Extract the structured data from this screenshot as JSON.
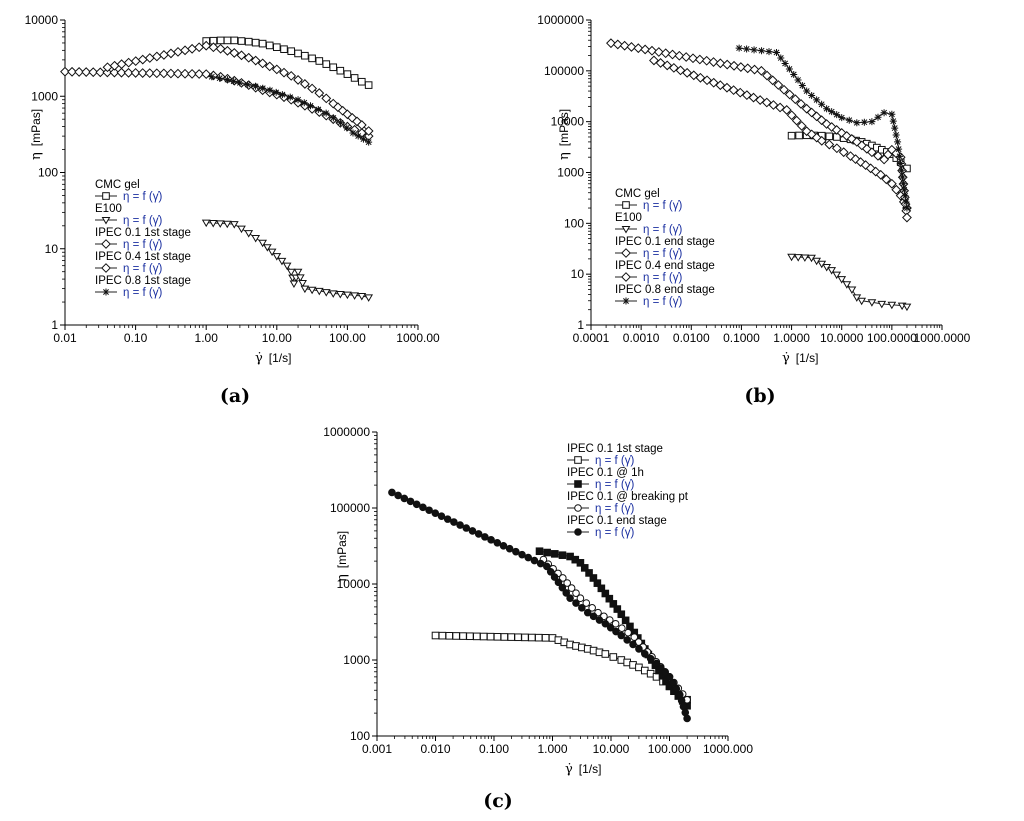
{
  "chart_data": [
    {
      "id": "a",
      "caption": "(a)",
      "type": "line",
      "scale": "log-log",
      "xlabel_sym": "γ̇",
      "xlabel_unit": "[1/s]",
      "ylabel_sym": "η",
      "ylabel_unit": "[mPas]",
      "xlim": [
        0.01,
        1000
      ],
      "ylim": [
        1,
        10000
      ],
      "x_ticks": [
        0.01,
        0.1,
        1,
        10,
        100,
        1000
      ],
      "x_tick_labels": [
        "0.01",
        "0.10",
        "1.00",
        "10.00",
        "100.00",
        "1000.00"
      ],
      "y_ticks": [
        1,
        10,
        100,
        1000,
        10000
      ],
      "y_tick_labels": [
        "1",
        "10",
        "100",
        "1000",
        "10000"
      ],
      "legend_formula": "η = f (γ̇)",
      "legend_position": "center-left",
      "series": [
        {
          "name": "CMC gel",
          "marker": "square-open",
          "x": [
            1,
            1.6,
            2.5,
            4,
            6.3,
            10,
            16,
            25,
            40,
            63,
            100,
            160,
            200
          ],
          "y": [
            5300,
            5400,
            5400,
            5200,
            4900,
            4400,
            3900,
            3400,
            2900,
            2400,
            1950,
            1550,
            1400
          ]
        },
        {
          "name": "E100",
          "marker": "triangle-down-open",
          "x": [
            1,
            2.5,
            4,
            6.3,
            10,
            14,
            16,
            17.5,
            20,
            25,
            40,
            63,
            100,
            160,
            200
          ],
          "y": [
            22,
            21,
            16,
            12,
            8,
            6,
            5,
            3.5,
            5,
            3,
            2.8,
            2.6,
            2.5,
            2.4,
            2.3
          ]
        },
        {
          "name": "IPEC 0.1 1st stage",
          "marker": "diamond-open",
          "x": [
            0.01,
            1,
            1.6,
            2.5,
            4,
            6.3,
            10,
            16,
            25,
            40,
            63,
            100,
            160,
            200
          ],
          "y": [
            2100,
            1950,
            1800,
            1600,
            1400,
            1200,
            1050,
            900,
            750,
            620,
            500,
            400,
            330,
            300
          ]
        },
        {
          "name": "IPEC 0.4 1st stage",
          "marker": "diamond-open",
          "x": [
            0.04,
            1,
            1.6,
            2.5,
            4,
            6.3,
            10,
            16,
            25,
            40,
            63,
            100,
            160,
            200
          ],
          "y": [
            2400,
            4600,
            4200,
            3700,
            3200,
            2700,
            2250,
            1850,
            1450,
            1100,
            800,
            580,
            420,
            350
          ]
        },
        {
          "name": "IPEC 0.8 1st stage",
          "marker": "star",
          "x": [
            1.2,
            2,
            3,
            5,
            8,
            12,
            20,
            30,
            50,
            80,
            120,
            200
          ],
          "y": [
            1800,
            1650,
            1500,
            1350,
            1200,
            1050,
            900,
            750,
            600,
            450,
            330,
            250
          ]
        }
      ]
    },
    {
      "id": "b",
      "caption": "(b)",
      "type": "line",
      "scale": "log-log",
      "xlabel_sym": "γ̇",
      "xlabel_unit": "[1/s]",
      "ylabel_sym": "η",
      "ylabel_unit": "[mPas]",
      "xlim": [
        0.0001,
        1000
      ],
      "ylim": [
        1,
        1000000
      ],
      "x_ticks": [
        0.0001,
        0.001,
        0.01,
        0.1,
        1,
        10,
        100,
        1000
      ],
      "x_tick_labels": [
        "0.0001",
        "0.0010",
        "0.0100",
        "0.1000",
        "1.0000",
        "10.0000",
        "100.0000",
        "1000.0000"
      ],
      "y_ticks": [
        1,
        10,
        100,
        1000,
        10000,
        100000,
        1000000
      ],
      "y_tick_labels": [
        "1",
        "10",
        "100",
        "1000",
        "10000",
        "100000",
        "1000000"
      ],
      "legend_formula": "η = f (γ̇)",
      "legend_position": "center-left",
      "series": [
        {
          "name": "CMC gel",
          "marker": "square-open",
          "x": [
            1,
            2,
            4,
            8,
            15,
            25,
            40,
            63,
            100,
            150,
            200
          ],
          "y": [
            5300,
            5400,
            5300,
            5000,
            4500,
            4000,
            3400,
            2800,
            2300,
            1600,
            1200
          ]
        },
        {
          "name": "E100",
          "marker": "triangle-down-open",
          "x": [
            1,
            2.5,
            4,
            6.3,
            10,
            16,
            20,
            25,
            40,
            63,
            100,
            160,
            200
          ],
          "y": [
            22,
            21,
            16,
            12,
            8,
            5,
            3.5,
            3,
            2.8,
            2.6,
            2.5,
            2.4,
            2.3
          ]
        },
        {
          "name": "IPEC 0.1 end stage",
          "marker": "diamond-open",
          "x": [
            0.0018,
            0.8,
            2,
            4,
            8,
            15,
            30,
            60,
            100,
            150,
            200
          ],
          "y": [
            160000,
            17000,
            6500,
            4200,
            3000,
            2100,
            1400,
            900,
            600,
            350,
            200
          ]
        },
        {
          "name": "IPEC 0.4 end stage",
          "marker": "diamond-open",
          "x": [
            0.00025,
            0.25,
            2,
            5,
            10,
            20,
            40,
            70,
            100,
            150,
            200
          ],
          "y": [
            350000,
            100000,
            18000,
            9000,
            6000,
            4000,
            2500,
            1800,
            2800,
            2000,
            130
          ]
        },
        {
          "name": "IPEC 0.8 end stage",
          "marker": "star",
          "x": [
            0.09,
            0.5,
            2,
            5,
            10,
            20,
            40,
            70,
            100,
            130,
            150,
            170,
            200
          ],
          "y": [
            280000,
            230000,
            40000,
            18000,
            12000,
            9500,
            10000,
            15000,
            14000,
            4000,
            1500,
            600,
            200
          ]
        }
      ]
    },
    {
      "id": "c",
      "caption": "(c)",
      "type": "line",
      "scale": "log-log",
      "xlabel_sym": "γ̇",
      "xlabel_unit": "[1/s]",
      "ylabel_sym": "η",
      "ylabel_unit": "[mPas]",
      "xlim": [
        0.001,
        1000
      ],
      "ylim": [
        100,
        1000000
      ],
      "x_ticks": [
        0.001,
        0.01,
        0.1,
        1,
        10,
        100,
        1000
      ],
      "x_tick_labels": [
        "0.001",
        "0.010",
        "0.100",
        "1.000",
        "10.000",
        "100.000",
        "1000.000"
      ],
      "y_ticks": [
        100,
        1000,
        10000,
        100000,
        1000000
      ],
      "y_tick_labels": [
        "100",
        "1000",
        "10000",
        "100000",
        "1000000"
      ],
      "legend_formula": "η = f (γ̇)",
      "legend_position": "top-right",
      "series": [
        {
          "name": "IPEC 0.1 1st stage",
          "marker": "square-open",
          "x": [
            0.01,
            1,
            2,
            4,
            8,
            15,
            30,
            60,
            100,
            200
          ],
          "y": [
            2100,
            1950,
            1600,
            1400,
            1200,
            1000,
            800,
            600,
            450,
            300
          ]
        },
        {
          "name": "IPEC 0.1 @ 1h",
          "marker": "square-filled",
          "x": [
            0.6,
            2,
            3,
            5,
            8,
            15,
            25,
            50,
            100,
            200
          ],
          "y": [
            27000,
            23000,
            19000,
            12000,
            7500,
            4000,
            2300,
            1000,
            450,
            250
          ]
        },
        {
          "name": "IPEC 0.1 @ breaking pt",
          "marker": "circle-open",
          "x": [
            0.7,
            1.5,
            3,
            6,
            12,
            25,
            50,
            100,
            200
          ],
          "y": [
            21000,
            12000,
            6500,
            4200,
            3000,
            2000,
            1100,
            600,
            300
          ]
        },
        {
          "name": "IPEC 0.1 end stage",
          "marker": "circle-filled",
          "x": [
            0.0018,
            0.8,
            2,
            4,
            8,
            15,
            30,
            60,
            100,
            150,
            200
          ],
          "y": [
            160000,
            17000,
            6500,
            4200,
            3000,
            2100,
            1400,
            900,
            600,
            350,
            170
          ]
        }
      ]
    }
  ]
}
